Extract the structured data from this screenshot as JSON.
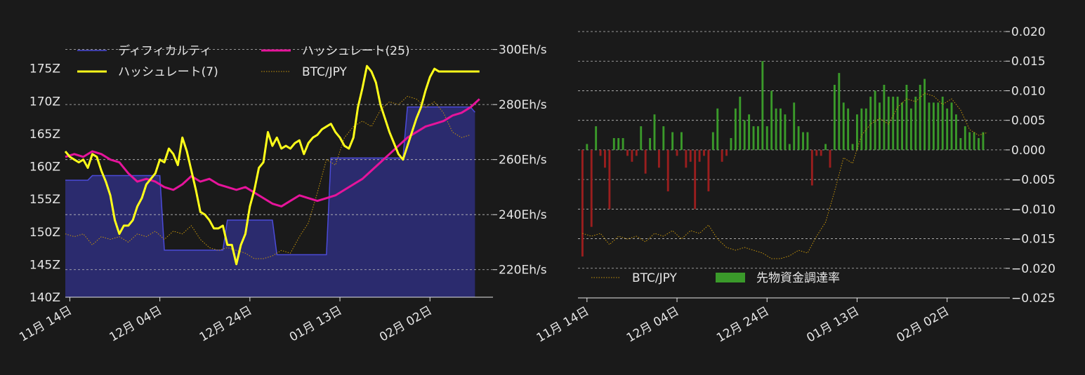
{
  "colors": {
    "background": "#1a1a1a",
    "text": "#e6e6e6",
    "grid": "#bfbfbf",
    "difficulty_line": "#4b4bd8",
    "difficulty_fill": "#2b2b6e",
    "hash7": "#ffff1a",
    "hash25": "#e6149b",
    "btc": "#c8960a",
    "funding_pos": "#3a9a2a",
    "funding_neg": "#9a1e1e"
  },
  "chart_data": [
    {
      "type": "line",
      "x_tick_labels": [
        "11月 14日",
        "12月 04日",
        "12月 24日",
        "01月 13日",
        "02月 02日"
      ],
      "x_tick_days": [
        0,
        20,
        40,
        60,
        80
      ],
      "x_range_days": [
        -1,
        94
      ],
      "left_axis": {
        "range": [
          140,
          180
        ],
        "ticks": [
          140,
          145,
          150,
          155,
          160,
          165,
          170,
          175
        ],
        "tick_labels": [
          "140Z",
          "145Z",
          "150Z",
          "155Z",
          "160Z",
          "165Z",
          "170Z",
          "175Z"
        ]
      },
      "right_axis": {
        "range": [
          210,
          305
        ],
        "ticks": [
          220,
          240,
          260,
          280,
          300
        ],
        "tick_labels": [
          "220Eh/s",
          "240Eh/s",
          "260Eh/s",
          "280Eh/s",
          "300Eh/s"
        ]
      },
      "legend": [
        {
          "label": "ディフィカルティ",
          "key": "difficulty"
        },
        {
          "label": "ハッシュレート(25)",
          "key": "hash25"
        },
        {
          "label": "ハッシュレート(7)",
          "key": "hash7"
        },
        {
          "label": "BTC/JPY",
          "key": "btc"
        }
      ],
      "series": [
        {
          "name": "ディフィカルティ",
          "axis": "left",
          "step": true,
          "x": [
            -1,
            4,
            5,
            20,
            21,
            34,
            35,
            45,
            46,
            57,
            58,
            74,
            75,
            89,
            90
          ],
          "values": [
            157.9,
            157.9,
            158.6,
            158.6,
            147.2,
            147.2,
            151.8,
            151.8,
            146.5,
            146.5,
            161.3,
            161.3,
            169.1,
            169.1,
            168.3
          ]
        },
        {
          "name": "ハッシュレート(25)",
          "axis": "right",
          "x": [
            -1,
            1,
            3,
            5,
            7,
            9,
            11,
            13,
            15,
            17,
            19,
            21,
            23,
            25,
            27,
            29,
            31,
            33,
            35,
            37,
            39,
            41,
            43,
            45,
            47,
            49,
            51,
            53,
            55,
            57,
            59,
            61,
            63,
            65,
            67,
            69,
            71,
            73,
            75,
            77,
            79,
            81,
            83,
            85,
            87,
            89,
            91
          ],
          "values": [
            261,
            262,
            261,
            263,
            262,
            260,
            259,
            255,
            252,
            253,
            252,
            250,
            249,
            251,
            254,
            252,
            253,
            251,
            250,
            249,
            250,
            248,
            246,
            244,
            243,
            245,
            247,
            246,
            245,
            246,
            247,
            249,
            251,
            253,
            256,
            259,
            262,
            265,
            268,
            270,
            272,
            273,
            274,
            276,
            277,
            279,
            282
          ]
        },
        {
          "name": "ハッシュレート(7)",
          "axis": "right",
          "x": [
            -1,
            0,
            1,
            2,
            3,
            4,
            5,
            6,
            7,
            8,
            9,
            10,
            11,
            12,
            13,
            14,
            15,
            16,
            17,
            18,
            19,
            20,
            21,
            22,
            23,
            24,
            25,
            26,
            27,
            28,
            29,
            30,
            31,
            32,
            33,
            34,
            35,
            36,
            37,
            38,
            39,
            40,
            41,
            42,
            43,
            44,
            45,
            46,
            47,
            48,
            49,
            50,
            51,
            52,
            53,
            54,
            55,
            56,
            57,
            58,
            59,
            60,
            61,
            62,
            63,
            64,
            65,
            66,
            67,
            68,
            69,
            70,
            71,
            72,
            73,
            74,
            75,
            76,
            77,
            78,
            79,
            80,
            81,
            82,
            83,
            84,
            85,
            86,
            87,
            88,
            89,
            90,
            91
          ],
          "values": [
            263,
            261,
            260,
            259,
            260,
            257,
            262,
            261,
            256,
            252,
            247,
            238,
            233,
            236,
            236,
            238,
            243,
            246,
            251,
            253,
            255,
            260,
            259,
            264,
            262,
            258,
            268,
            263,
            256,
            249,
            241,
            240,
            238,
            235,
            235,
            236,
            229,
            229,
            222,
            229,
            233,
            243,
            249,
            257,
            259,
            270,
            265,
            268,
            264,
            265,
            264,
            266,
            267,
            262,
            266,
            268,
            269,
            271,
            272,
            273,
            270,
            268,
            265,
            264,
            268,
            279,
            286,
            294,
            292,
            288,
            280,
            275,
            270,
            266,
            262,
            260,
            265,
            270,
            275,
            279,
            285,
            290,
            293,
            292,
            292,
            292,
            292,
            292,
            292,
            292,
            292,
            292,
            292
          ]
        },
        {
          "name": "BTC/JPY",
          "axis": "right",
          "style": "dotted",
          "x": [
            -1,
            1,
            3,
            5,
            7,
            9,
            11,
            13,
            15,
            17,
            19,
            21,
            23,
            25,
            27,
            29,
            31,
            33,
            35,
            37,
            39,
            41,
            43,
            45,
            47,
            49,
            51,
            53,
            55,
            57,
            59,
            61,
            63,
            65,
            67,
            69,
            71,
            73,
            75,
            77,
            79,
            81,
            83,
            85,
            87,
            89
          ],
          "values": [
            233,
            232,
            233,
            229,
            232,
            231,
            232,
            230,
            233,
            232,
            234,
            231,
            234,
            233,
            236,
            231,
            228,
            227,
            228,
            227,
            226,
            224,
            224,
            225,
            227,
            226,
            232,
            237,
            248,
            260,
            258,
            268,
            272,
            274,
            272,
            278,
            281,
            280,
            283,
            282,
            279,
            281,
            277,
            270,
            268,
            269
          ]
        }
      ]
    },
    {
      "type": "bar",
      "x_tick_labels": [
        "11月 14日",
        "12月 04日",
        "12月 24日",
        "01月 13日",
        "02月 02日"
      ],
      "x_tick_days": [
        0,
        20,
        40,
        60,
        80
      ],
      "x_range_days": [
        -2,
        93
      ],
      "y_axis": {
        "range": [
          -0.025,
          0.02
        ],
        "ticks": [
          -0.025,
          -0.02,
          -0.015,
          -0.01,
          -0.005,
          0.0,
          0.005,
          0.01,
          0.015,
          0.02
        ],
        "tick_labels": [
          "−0.025",
          "−0.020",
          "−0.015",
          "−0.010",
          "−0.005",
          "0.000",
          "0.005",
          "0.010",
          "0.015",
          "0.020"
        ]
      },
      "legend": [
        {
          "label": "BTC/JPY",
          "key": "btc"
        },
        {
          "label": "先物資金調達率",
          "key": "funding"
        }
      ],
      "series": [
        {
          "name": "先物資金調達率",
          "x": [
            -1,
            0,
            1,
            2,
            3,
            4,
            5,
            6,
            7,
            8,
            9,
            10,
            11,
            12,
            13,
            14,
            15,
            16,
            17,
            18,
            19,
            20,
            21,
            22,
            23,
            24,
            25,
            26,
            27,
            28,
            29,
            30,
            31,
            32,
            33,
            34,
            35,
            36,
            37,
            38,
            39,
            40,
            41,
            42,
            43,
            44,
            45,
            46,
            47,
            48,
            49,
            50,
            51,
            52,
            53,
            54,
            55,
            56,
            57,
            58,
            59,
            60,
            61,
            62,
            63,
            64,
            65,
            66,
            67,
            68,
            69,
            70,
            71,
            72,
            73,
            74,
            75,
            76,
            77,
            78,
            79,
            80,
            81,
            82,
            83,
            84,
            85,
            86,
            87,
            88
          ],
          "values": [
            -0.018,
            0.001,
            -0.013,
            0.004,
            -0.001,
            -0.003,
            -0.01,
            0.002,
            0.002,
            0.002,
            -0.001,
            -0.002,
            -0.001,
            0.004,
            -0.004,
            0.002,
            0.006,
            -0.003,
            0.004,
            -0.007,
            0.003,
            -0.001,
            0.003,
            -0.003,
            -0.002,
            -0.01,
            -0.002,
            -0.001,
            -0.007,
            0.003,
            0.007,
            -0.002,
            -0.001,
            0.002,
            0.007,
            0.009,
            0.005,
            0.006,
            0.004,
            0.004,
            0.015,
            0.004,
            0.01,
            0.007,
            0.007,
            0.006,
            0.001,
            0.008,
            0.004,
            0.003,
            0.003,
            -0.006,
            -0.001,
            -0.001,
            0.001,
            -0.003,
            0.011,
            0.013,
            0.008,
            0.007,
            0.001,
            0.006,
            0.007,
            0.007,
            0.009,
            0.01,
            0.008,
            0.011,
            0.009,
            0.009,
            0.009,
            0.008,
            0.011,
            0.007,
            0.009,
            0.011,
            0.012,
            0.008,
            0.008,
            0.008,
            0.009,
            0.007,
            0.008,
            0.006,
            0.002,
            0.004,
            0.003,
            0.003,
            0.002,
            0.003
          ]
        },
        {
          "name": "BTC/JPY",
          "style": "dotted",
          "note_units": "same price series as left chart",
          "x": [
            -1,
            1,
            3,
            5,
            7,
            9,
            11,
            13,
            15,
            17,
            19,
            21,
            23,
            25,
            27,
            29,
            31,
            33,
            35,
            37,
            39,
            41,
            43,
            45,
            47,
            49,
            51,
            53,
            55,
            57,
            59,
            61,
            63,
            65,
            67,
            69,
            71,
            73,
            75,
            77,
            79,
            81,
            83,
            85,
            87,
            89
          ],
          "values": [
            233,
            232,
            233,
            229,
            232,
            231,
            232,
            230,
            233,
            232,
            234,
            231,
            234,
            233,
            236,
            231,
            228,
            227,
            228,
            227,
            226,
            224,
            224,
            225,
            227,
            226,
            232,
            237,
            248,
            260,
            258,
            268,
            272,
            274,
            272,
            278,
            281,
            280,
            283,
            282,
            279,
            281,
            277,
            270,
            268,
            269
          ]
        }
      ]
    }
  ]
}
